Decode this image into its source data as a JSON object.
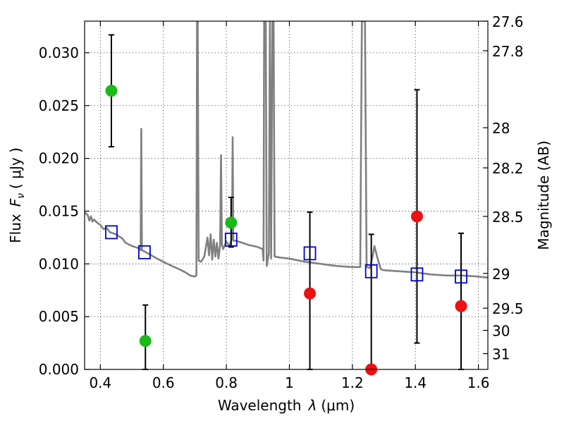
{
  "chart_data": {
    "type": "scatter",
    "xlabel_prefix": "Wavelength",
    "xlabel_symbol": "λ",
    "xlabel_unit": "(μm)",
    "ylabel_prefix": "Flux",
    "ylabel_symbol": "F",
    "ylabel_sub": "ν",
    "ylabel_unit": "( μJy )",
    "y2label": "Magnitude (AB)",
    "xlim": [
      0.35,
      1.63
    ],
    "ylim": [
      0.0,
      0.033
    ],
    "grid": true,
    "x_ticks": [
      0.4,
      0.6,
      0.8,
      1.0,
      1.2,
      1.4,
      1.6
    ],
    "x_tick_labels": [
      "0.4",
      "0.6",
      "0.8",
      "1",
      "1.2",
      "1.4",
      "1.6"
    ],
    "y_ticks": [
      0.0,
      0.005,
      0.01,
      0.015,
      0.02,
      0.025,
      0.03
    ],
    "y_tick_labels": [
      "0.000",
      "0.005",
      "0.010",
      "0.015",
      "0.020",
      "0.025",
      "0.030"
    ],
    "magnitude_ticks": [
      {
        "label": "27.6",
        "flux": 0.033
      },
      {
        "label": "27.8",
        "flux": 0.0302
      },
      {
        "label": "28",
        "flux": 0.0229
      },
      {
        "label": "28.2",
        "flux": 0.0191
      },
      {
        "label": "28.5",
        "flux": 0.0145
      },
      {
        "label": "29",
        "flux": 0.0091
      },
      {
        "label": "29.5",
        "flux": 0.0058
      },
      {
        "label": "30",
        "flux": 0.0037
      },
      {
        "label": "31",
        "flux": 0.0015
      }
    ],
    "series": [
      {
        "kind": "green-points",
        "color": "#1aba1a",
        "points": [
          {
            "x": 0.435,
            "y": 0.0264,
            "err_low": 0.0211,
            "err_high": 0.0317
          },
          {
            "x": 0.543,
            "y": 0.0027,
            "err_low": 0.0,
            "err_high": 0.0061
          },
          {
            "x": 0.815,
            "y": 0.0139,
            "err_low": 0.0116,
            "err_high": 0.0163
          }
        ]
      },
      {
        "kind": "red-points",
        "color": "#ee1111",
        "points": [
          {
            "x": 1.065,
            "y": 0.0072,
            "err_low": 0.0,
            "err_high": 0.0149
          },
          {
            "x": 1.26,
            "y": 0.0,
            "err_low": 0.0,
            "err_high": 0.0128
          },
          {
            "x": 1.405,
            "y": 0.0145,
            "err_low": 0.0025,
            "err_high": 0.0265
          },
          {
            "x": 1.545,
            "y": 0.006,
            "err_low": 0.0,
            "err_high": 0.0129
          }
        ]
      },
      {
        "kind": "model-squares",
        "color": "#0000cc",
        "points": [
          {
            "x": 0.435,
            "y": 0.013
          },
          {
            "x": 0.54,
            "y": 0.0111
          },
          {
            "x": 0.815,
            "y": 0.0123
          },
          {
            "x": 1.065,
            "y": 0.011
          },
          {
            "x": 1.26,
            "y": 0.0093
          },
          {
            "x": 1.405,
            "y": 0.009
          },
          {
            "x": 1.545,
            "y": 0.0088
          }
        ]
      }
    ],
    "spectrum": {
      "color": "#808080",
      "points": [
        [
          0.35,
          0.0149
        ],
        [
          0.36,
          0.0146
        ],
        [
          0.365,
          0.0141
        ],
        [
          0.37,
          0.0145
        ],
        [
          0.375,
          0.014
        ],
        [
          0.38,
          0.0142
        ],
        [
          0.39,
          0.0139
        ],
        [
          0.4,
          0.0137
        ],
        [
          0.41,
          0.0133
        ],
        [
          0.42,
          0.0134
        ],
        [
          0.43,
          0.013
        ],
        [
          0.45,
          0.0128
        ],
        [
          0.47,
          0.0124
        ],
        [
          0.48,
          0.012
        ],
        [
          0.5,
          0.0117
        ],
        [
          0.52,
          0.0115
        ],
        [
          0.528,
          0.0113
        ],
        [
          0.53,
          0.0228
        ],
        [
          0.532,
          0.0113
        ],
        [
          0.55,
          0.011
        ],
        [
          0.58,
          0.0105
        ],
        [
          0.6,
          0.0102
        ],
        [
          0.62,
          0.0099
        ],
        [
          0.65,
          0.0095
        ],
        [
          0.67,
          0.0092
        ],
        [
          0.685,
          0.0089
        ],
        [
          0.7,
          0.0088
        ],
        [
          0.705,
          0.0089
        ],
        [
          0.707,
          0.033
        ],
        [
          0.709,
          0.033
        ],
        [
          0.712,
          0.0103
        ],
        [
          0.72,
          0.0102
        ],
        [
          0.73,
          0.0107
        ],
        [
          0.74,
          0.0125
        ],
        [
          0.745,
          0.0108
        ],
        [
          0.75,
          0.0128
        ],
        [
          0.755,
          0.0104
        ],
        [
          0.76,
          0.0123
        ],
        [
          0.765,
          0.0107
        ],
        [
          0.77,
          0.012
        ],
        [
          0.775,
          0.0105
        ],
        [
          0.78,
          0.0118
        ],
        [
          0.783,
          0.0203
        ],
        [
          0.786,
          0.0118
        ],
        [
          0.79,
          0.0114
        ],
        [
          0.8,
          0.0121
        ],
        [
          0.81,
          0.0117
        ],
        [
          0.818,
          0.0125
        ],
        [
          0.82,
          0.022
        ],
        [
          0.822,
          0.0122
        ],
        [
          0.83,
          0.0122
        ],
        [
          0.85,
          0.012
        ],
        [
          0.87,
          0.0118
        ],
        [
          0.9,
          0.0116
        ],
        [
          0.915,
          0.0114
        ],
        [
          0.918,
          0.0103
        ],
        [
          0.92,
          0.033
        ],
        [
          0.925,
          0.033
        ],
        [
          0.928,
          0.0098
        ],
        [
          0.935,
          0.011
        ],
        [
          0.938,
          0.033
        ],
        [
          0.942,
          0.0105
        ],
        [
          0.946,
          0.033
        ],
        [
          0.95,
          0.033
        ],
        [
          0.953,
          0.0107
        ],
        [
          0.97,
          0.0106
        ],
        [
          1.0,
          0.0105
        ],
        [
          1.05,
          0.0102
        ],
        [
          1.1,
          0.01
        ],
        [
          1.15,
          0.0098
        ],
        [
          1.2,
          0.0097
        ],
        [
          1.225,
          0.0097
        ],
        [
          1.23,
          0.033
        ],
        [
          1.24,
          0.033
        ],
        [
          1.245,
          0.0097
        ],
        [
          1.255,
          0.0096
        ],
        [
          1.265,
          0.0108
        ],
        [
          1.27,
          0.0117
        ],
        [
          1.28,
          0.0105
        ],
        [
          1.29,
          0.0095
        ],
        [
          1.3,
          0.0094
        ],
        [
          1.35,
          0.0093
        ],
        [
          1.4,
          0.0092
        ],
        [
          1.45,
          0.009
        ],
        [
          1.5,
          0.0089
        ],
        [
          1.55,
          0.0089
        ],
        [
          1.6,
          0.0088
        ],
        [
          1.63,
          0.0087
        ]
      ]
    }
  }
}
